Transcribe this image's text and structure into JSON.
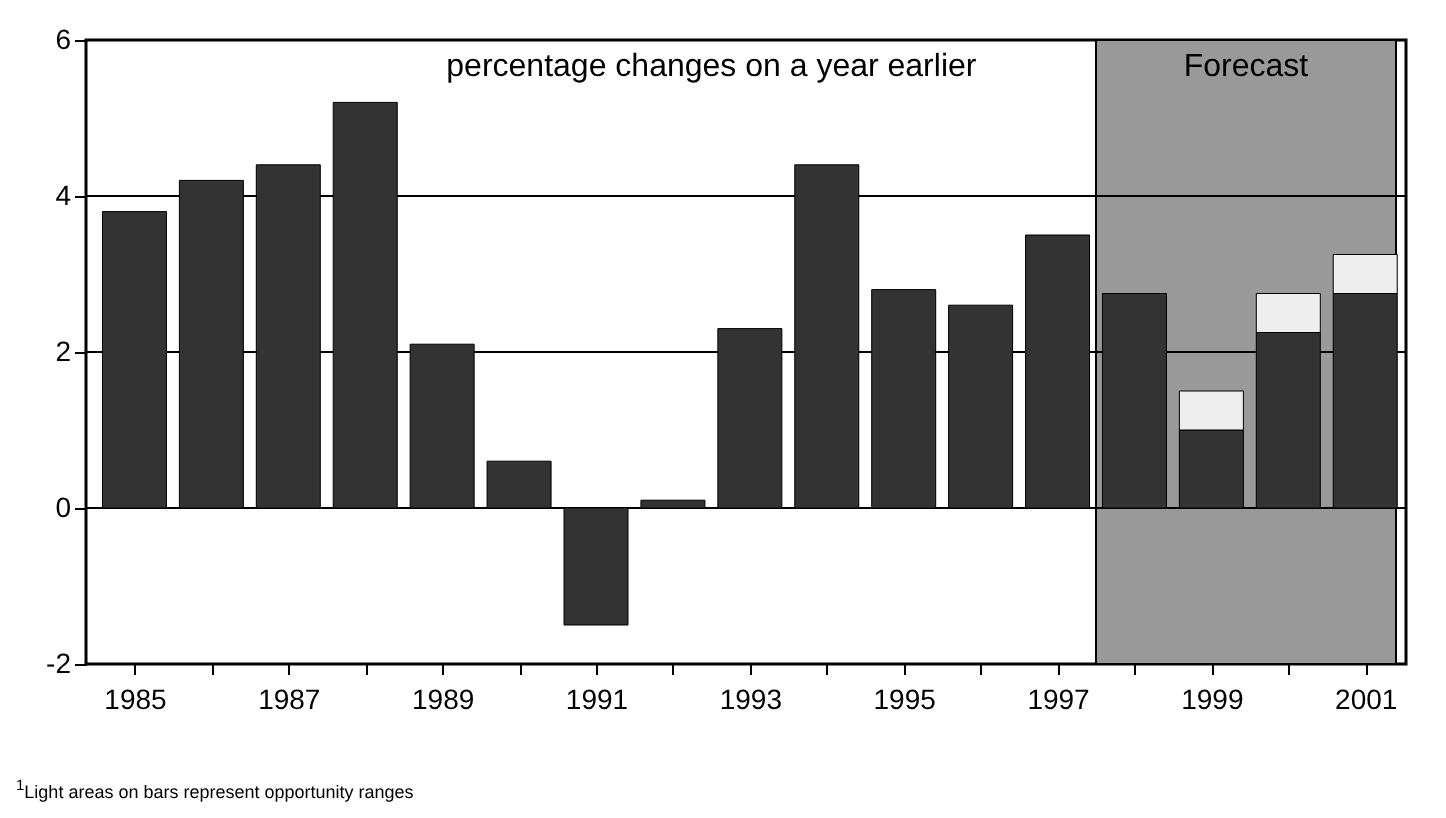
{
  "chart_data": {
    "type": "bar",
    "stacked": true,
    "x": [
      1985,
      1986,
      1987,
      1988,
      1989,
      1990,
      1991,
      1992,
      1993,
      1994,
      1995,
      1996,
      1997,
      1998,
      1999,
      2000,
      2001
    ],
    "series": [
      {
        "color": "#333333",
        "values": [
          3.8,
          4.2,
          4.4,
          5.2,
          2.1,
          0.6,
          -1.5,
          0.1,
          2.3,
          4.4,
          2.8,
          2.6,
          3.5,
          2.75,
          1.0,
          2.25,
          2.75
        ]
      },
      {
        "color": "#eeeeee",
        "values": [
          null,
          null,
          null,
          null,
          null,
          null,
          null,
          null,
          null,
          null,
          null,
          null,
          null,
          null,
          0.5,
          0.5,
          0.5
        ]
      }
    ],
    "xlim": [
      1984.5,
      2001.4
    ],
    "xticks": [
      1985,
      {
        "value": 1986,
        "label": null
      },
      1987,
      {
        "value": 1988,
        "label": null
      },
      1989,
      {
        "value": 1990,
        "label": null
      },
      1991,
      {
        "value": 1992,
        "label": null
      },
      1993,
      {
        "value": 1994,
        "label": null
      },
      1995,
      {
        "value": 1996,
        "label": null
      },
      1997,
      {
        "value": 1998,
        "label": null
      },
      1999,
      {
        "value": 2000,
        "label": null
      },
      2001
    ],
    "ylim": [
      -2,
      6
    ],
    "yticks": [
      -2,
      0,
      2,
      4,
      6
    ],
    "grid": "y",
    "bands": [
      {
        "axis": "x",
        "from": 1997.5,
        "to": 2001.4,
        "label": "Forecast",
        "color": "#999999"
      }
    ],
    "annotations": [
      "percentage changes on a year earlier",
      "$^{1}$Light areas on bars represent opportunity ranges"
    ]
  }
}
